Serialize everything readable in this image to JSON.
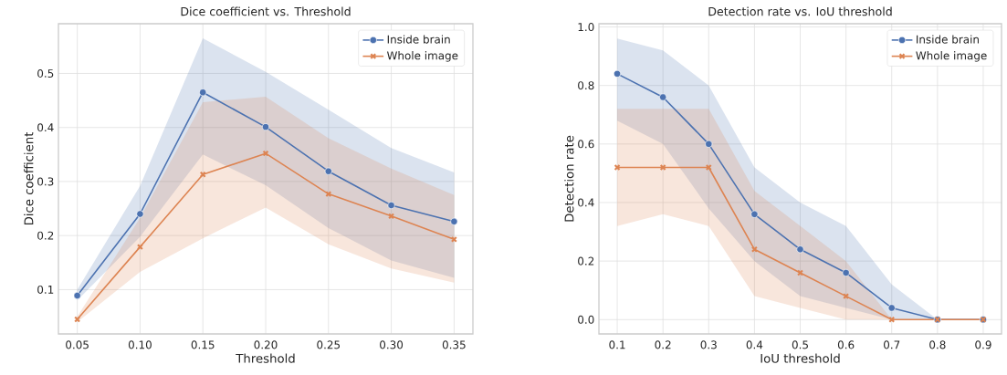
{
  "chart_data": [
    {
      "type": "line",
      "title": "Dice coefficient vs. Threshold",
      "xlabel": "Threshold",
      "ylabel": "Dice coefficient",
      "x": [
        0.05,
        0.1,
        0.15,
        0.2,
        0.25,
        0.3,
        0.35
      ],
      "xlim": [
        0.035,
        0.365
      ],
      "ylim": [
        0.018,
        0.592
      ],
      "xticks": [
        0.05,
        {
          "value": 0.1,
          "label": "0.10"
        },
        0.15,
        {
          "value": 0.2,
          "label": "0.20"
        },
        0.25,
        {
          "value": 0.3,
          "label": "0.30"
        },
        0.35
      ],
      "yticks": [
        0.1,
        0.2,
        0.3,
        0.4,
        0.5
      ],
      "grid": true,
      "legend": "top right",
      "series": [
        {
          "name": "Inside brain",
          "color": "#4c72b0",
          "marker": "circle",
          "values": [
            0.089,
            0.24,
            0.465,
            0.401,
            0.319,
            0.256,
            0.226
          ],
          "lower": [
            0.08,
            0.198,
            0.35,
            0.293,
            0.214,
            0.154,
            0.122
          ],
          "upper": [
            0.1,
            0.292,
            0.565,
            0.503,
            0.433,
            0.362,
            0.317
          ]
        },
        {
          "name": "Whole image",
          "color": "#dd8452",
          "marker": "cross",
          "values": [
            0.045,
            0.179,
            0.313,
            0.352,
            0.277,
            0.236,
            0.193
          ],
          "lower": [
            0.04,
            0.133,
            0.195,
            0.252,
            0.184,
            0.139,
            0.113
          ],
          "upper": [
            0.05,
            0.233,
            0.447,
            0.457,
            0.38,
            0.324,
            0.275
          ]
        }
      ]
    },
    {
      "type": "line",
      "title": "Detection rate vs. IoU threshold",
      "xlabel": "IoU threshold",
      "ylabel": "Detection rate",
      "x": [
        0.1,
        0.2,
        0.3,
        0.4,
        0.5,
        0.6,
        0.7,
        0.8,
        0.9
      ],
      "xlim": [
        0.06,
        0.94
      ],
      "ylim": [
        -0.049,
        1.011
      ],
      "xticks": [
        0.1,
        0.2,
        0.3,
        0.4,
        0.5,
        0.6,
        0.7,
        0.8,
        0.9
      ],
      "yticks": [
        {
          "value": 0,
          "label": "0.0"
        },
        0.2,
        0.4,
        0.6,
        0.8,
        {
          "value": 1,
          "label": "1.0"
        }
      ],
      "grid": true,
      "legend": "top right",
      "series": [
        {
          "name": "Inside brain",
          "color": "#4c72b0",
          "marker": "circle",
          "values": [
            0.84,
            0.76,
            0.6,
            0.36,
            0.24,
            0.16,
            0.04,
            0,
            0
          ],
          "lower": [
            0.68,
            0.6,
            0.38,
            0.2,
            0.08,
            0.04,
            0,
            0,
            0
          ],
          "upper": [
            0.96,
            0.92,
            0.8,
            0.52,
            0.4,
            0.32,
            0.12,
            0,
            0
          ]
        },
        {
          "name": "Whole image",
          "color": "#dd8452",
          "marker": "cross",
          "values": [
            0.52,
            0.52,
            0.52,
            0.24,
            0.16,
            0.08,
            0,
            0,
            0
          ],
          "lower": [
            0.32,
            0.36,
            0.32,
            0.08,
            0.04,
            0,
            0,
            0,
            0
          ],
          "upper": [
            0.72,
            0.72,
            0.72,
            0.44,
            0.32,
            0.2,
            0,
            0,
            0
          ]
        }
      ]
    }
  ]
}
